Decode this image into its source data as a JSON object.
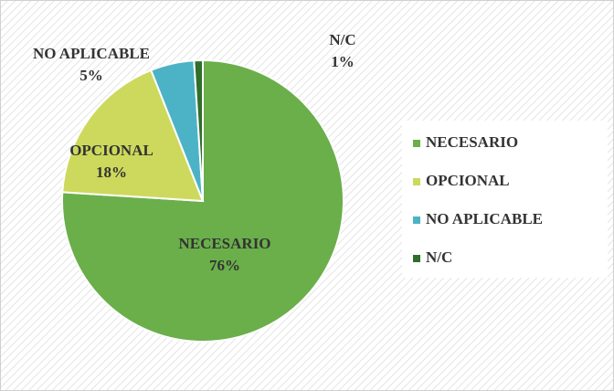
{
  "chart_data": {
    "type": "pie",
    "categories": [
      "NECESARIO",
      "OPCIONAL",
      "NO APLICABLE",
      "N/C"
    ],
    "values": [
      76,
      18,
      5,
      1
    ],
    "value_labels": [
      "76%",
      "18%",
      "5%",
      "1%"
    ],
    "colors": [
      "#6aaf4a",
      "#cdd95c",
      "#4cb3c6",
      "#2f6e2b"
    ],
    "legend": "right"
  }
}
